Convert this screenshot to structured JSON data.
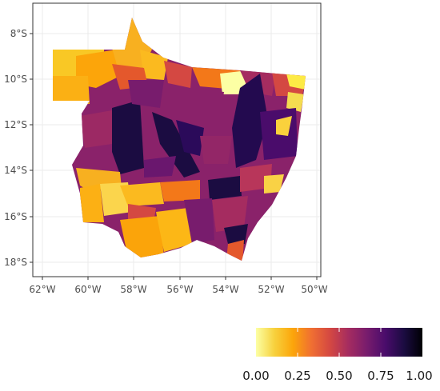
{
  "map": {
    "axes": {
      "x_ticks": [
        "62°W",
        "60°W",
        "58°W",
        "56°W",
        "54°W",
        "52°W",
        "50°W"
      ],
      "y_ticks": [
        "8°S",
        "10°S",
        "12°S",
        "14°S",
        "16°S",
        "18°S"
      ]
    },
    "legend": {
      "scale": "inferno (reversed)",
      "colors": [
        "#fcffa4",
        "#f7d13d",
        "#fca50a",
        "#f06f32",
        "#d44842",
        "#a52c60",
        "#781c6d",
        "#4a0c6b",
        "#1b0c41",
        "#000004"
      ],
      "labels": [
        "0.00",
        "0.25",
        "0.50",
        "0.75",
        "1.00"
      ],
      "range": [
        0,
        1
      ]
    },
    "grid": true,
    "panel_border": true
  }
}
